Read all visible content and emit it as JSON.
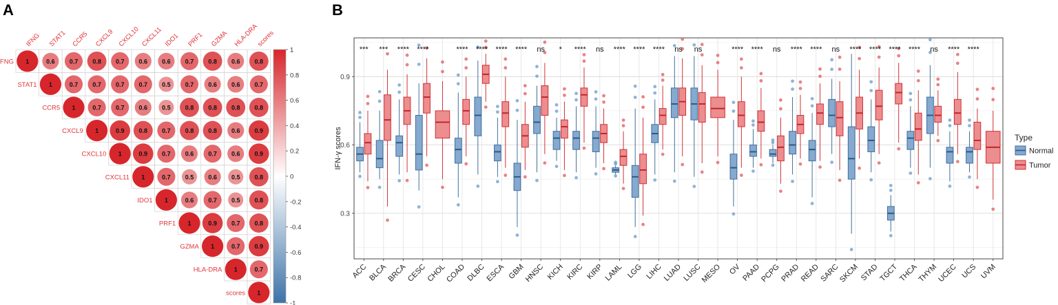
{
  "panel_a": {
    "label": "A"
  },
  "panel_b": {
    "label": "B"
  },
  "colors": {
    "normal": "#5b8fbe",
    "tumor": "#e04a4e",
    "corr_pos": "#d7262b",
    "corr_neg": "#3d73a8"
  },
  "chart_data": [
    {
      "type": "heatmap",
      "subtype": "correlation-upper-triangle",
      "variables": [
        "IFNG",
        "STAT1",
        "CCR5",
        "CXCL9",
        "CXCL10",
        "CXCL11",
        "IDO1",
        "PRF1",
        "GZMA",
        "HLA-DRA",
        "scores"
      ],
      "matrix_upper": [
        [
          1,
          0.6,
          0.7,
          0.8,
          0.7,
          0.6,
          0.6,
          0.7,
          0.8,
          0.6,
          0.8
        ],
        [
          1,
          0.7,
          0.7,
          0.7,
          0.7,
          0.5,
          0.7,
          0.6,
          0.6,
          0.7
        ],
        [
          1,
          0.7,
          0.7,
          0.6,
          0.5,
          0.8,
          0.8,
          0.8,
          0.8
        ],
        [
          1,
          0.9,
          0.8,
          0.7,
          0.8,
          0.8,
          0.6,
          0.9
        ],
        [
          1,
          0.9,
          0.7,
          0.6,
          0.7,
          0.6,
          0.9
        ],
        [
          1,
          0.7,
          0.5,
          0.6,
          0.5,
          0.8
        ],
        [
          1,
          0.6,
          0.7,
          0.5,
          0.8
        ],
        [
          1,
          0.9,
          0.7,
          0.8
        ],
        [
          1,
          0.7,
          0.9
        ],
        [
          1,
          0.7
        ],
        [
          1
        ]
      ],
      "colorbar_range": [
        -1,
        1
      ],
      "colorbar_ticks": [
        "1",
        "0.8",
        "0.6",
        "0.4",
        "0.2",
        "0",
        "-0.2",
        "-0.4",
        "-0.6",
        "-0.8",
        "-1"
      ]
    },
    {
      "type": "boxplot",
      "ylabel": "IFN-γ scores",
      "ylim": [
        0.1,
        1.07
      ],
      "yticks": [
        "0.3",
        "0.6",
        "0.9"
      ],
      "legend_title": "Type",
      "legend": [
        "Normal",
        "Tumor"
      ],
      "legend_position": "right",
      "categories": [
        "ACC",
        "BLCA",
        "BRCA",
        "CESC",
        "CHOL",
        "COAD",
        "DLBC",
        "ESCA",
        "GBM",
        "HNSC",
        "KICH",
        "KIRC",
        "KIRP",
        "LAML",
        "LGG",
        "LIHC",
        "LUAD",
        "LUSC",
        "MESO",
        "OV",
        "PAAD",
        "PCPG",
        "PRAD",
        "READ",
        "SARC",
        "SKCM",
        "STAD",
        "TGCT",
        "THCA",
        "THYM",
        "UCEC",
        "UCS",
        "UVM"
      ],
      "significance": [
        "***",
        "***",
        "****",
        "****",
        "",
        "****",
        "****",
        "****",
        "****",
        "ns",
        "*",
        "****",
        "ns",
        "****",
        "****",
        "****",
        "ns",
        "ns",
        "",
        "****",
        "****",
        "ns",
        "****",
        "****",
        "ns",
        "****",
        "****",
        "****",
        "****",
        "ns",
        "****",
        "****",
        ""
      ],
      "series": [
        {
          "name": "Normal",
          "stats": [
            [
              0.48,
              0.53,
              0.56,
              0.59,
              0.7
            ],
            [
              0.45,
              0.5,
              0.54,
              0.62,
              0.75
            ],
            [
              0.47,
              0.55,
              0.61,
              0.64,
              0.8
            ],
            [
              0.4,
              0.49,
              0.56,
              0.73,
              0.87
            ],
            null,
            [
              0.37,
              0.52,
              0.58,
              0.63,
              0.83
            ],
            [
              0.47,
              0.64,
              0.73,
              0.81,
              0.97
            ],
            [
              0.46,
              0.53,
              0.57,
              0.6,
              0.72
            ],
            [
              0.24,
              0.4,
              0.46,
              0.52,
              0.71
            ],
            [
              0.48,
              0.65,
              0.7,
              0.77,
              0.86
            ],
            [
              0.53,
              0.58,
              0.63,
              0.66,
              0.72
            ],
            [
              0.48,
              0.58,
              0.63,
              0.66,
              0.77
            ],
            [
              0.5,
              0.57,
              0.63,
              0.66,
              0.77
            ],
            [
              0.47,
              0.48,
              0.49,
              0.5,
              0.51
            ],
            [
              0.24,
              0.37,
              0.46,
              0.51,
              0.76
            ],
            [
              0.47,
              0.61,
              0.65,
              0.69,
              0.8
            ],
            [
              0.48,
              0.72,
              0.78,
              0.85,
              0.99
            ],
            [
              0.46,
              0.71,
              0.78,
              0.85,
              0.99
            ],
            null,
            [
              0.33,
              0.45,
              0.5,
              0.56,
              0.71
            ],
            [
              0.5,
              0.55,
              0.57,
              0.6,
              0.67
            ],
            [
              0.52,
              0.55,
              0.56,
              0.58,
              0.6
            ],
            [
              0.47,
              0.56,
              0.6,
              0.66,
              0.81
            ],
            [
              0.37,
              0.53,
              0.58,
              0.62,
              0.74
            ],
            [
              0.56,
              0.68,
              0.73,
              0.8,
              0.89
            ],
            [
              0.21,
              0.45,
              0.54,
              0.68,
              1.0
            ],
            [
              0.48,
              0.57,
              0.62,
              0.68,
              0.8
            ],
            [
              0.22,
              0.27,
              0.3,
              0.33,
              0.38
            ],
            [
              0.5,
              0.58,
              0.63,
              0.66,
              0.77
            ],
            [
              0.5,
              0.65,
              0.73,
              0.81,
              0.95
            ],
            [
              0.44,
              0.52,
              0.57,
              0.59,
              0.66
            ],
            [
              0.48,
              0.52,
              0.57,
              0.59,
              0.66
            ],
            null
          ]
        },
        {
          "name": "Tumor",
          "stats": [
            [
              0.44,
              0.56,
              0.61,
              0.65,
              0.75
            ],
            [
              0.33,
              0.62,
              0.71,
              0.82,
              0.93
            ],
            [
              0.48,
              0.69,
              0.75,
              0.81,
              0.91
            ],
            [
              0.55,
              0.74,
              0.81,
              0.87,
              0.98
            ],
            [
              0.45,
              0.63,
              0.7,
              0.75,
              0.88
            ],
            [
              0.55,
              0.69,
              0.75,
              0.8,
              0.9
            ],
            [
              0.79,
              0.87,
              0.91,
              0.95,
              1.0
            ],
            [
              0.5,
              0.68,
              0.74,
              0.79,
              0.9
            ],
            [
              0.49,
              0.59,
              0.64,
              0.69,
              0.79
            ],
            [
              0.56,
              0.73,
              0.81,
              0.86,
              0.96
            ],
            [
              0.49,
              0.63,
              0.68,
              0.71,
              0.79
            ],
            [
              0.61,
              0.77,
              0.82,
              0.85,
              0.94
            ],
            [
              0.52,
              0.61,
              0.65,
              0.69,
              0.76
            ],
            [
              0.43,
              0.51,
              0.55,
              0.58,
              0.66
            ],
            [
              0.29,
              0.43,
              0.49,
              0.56,
              0.72
            ],
            [
              0.58,
              0.69,
              0.73,
              0.76,
              0.86
            ],
            [
              0.55,
              0.73,
              0.79,
              0.85,
              0.98
            ],
            [
              0.52,
              0.7,
              0.78,
              0.83,
              0.95
            ],
            [
              0.55,
              0.72,
              0.76,
              0.81,
              0.93
            ],
            [
              0.5,
              0.68,
              0.73,
              0.79,
              0.9
            ],
            [
              0.54,
              0.66,
              0.7,
              0.75,
              0.85
            ],
            [
              0.43,
              0.53,
              0.59,
              0.64,
              0.72
            ],
            [
              0.54,
              0.65,
              0.69,
              0.73,
              0.82
            ],
            [
              0.53,
              0.69,
              0.74,
              0.78,
              0.87
            ],
            [
              0.49,
              0.64,
              0.72,
              0.79,
              0.88
            ],
            [
              0.54,
              0.67,
              0.74,
              0.81,
              0.93
            ],
            [
              0.56,
              0.71,
              0.77,
              0.84,
              0.94
            ],
            [
              0.61,
              0.78,
              0.83,
              0.87,
              0.96
            ],
            [
              0.47,
              0.62,
              0.67,
              0.74,
              0.84
            ],
            [
              0.64,
              0.7,
              0.73,
              0.77,
              0.84
            ],
            [
              0.56,
              0.69,
              0.74,
              0.8,
              0.92
            ],
            [
              0.45,
              0.58,
              0.62,
              0.7,
              0.76
            ],
            [
              0.36,
              0.52,
              0.59,
              0.66,
              0.75
            ]
          ]
        }
      ]
    }
  ]
}
